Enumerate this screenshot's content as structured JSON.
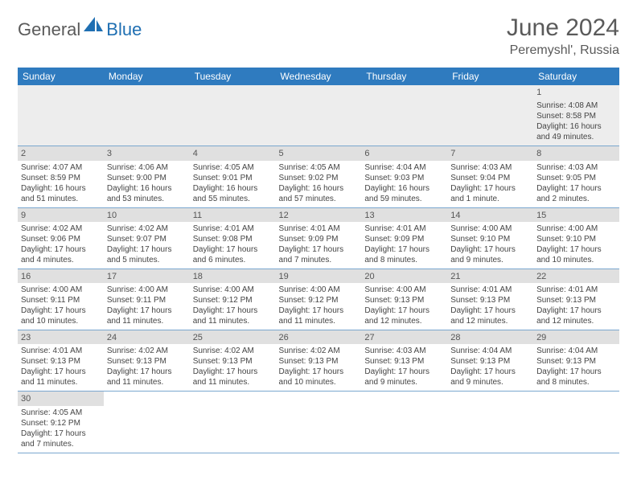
{
  "brand": {
    "part1": "General",
    "part2": "Blue",
    "color1": "#5a5a5a",
    "color2": "#1f6fb2"
  },
  "title": "June 2024",
  "location": "Peremyshl', Russia",
  "header_bg": "#2f7bbf",
  "header_fg": "#ffffff",
  "daynum_bg": "#e0e0e0",
  "border_color": "#7aa7cf",
  "weekdays": [
    "Sunday",
    "Monday",
    "Tuesday",
    "Wednesday",
    "Thursday",
    "Friday",
    "Saturday"
  ],
  "weeks": [
    [
      null,
      null,
      null,
      null,
      null,
      null,
      {
        "n": "1",
        "sr": "Sunrise: 4:08 AM",
        "ss": "Sunset: 8:58 PM",
        "dl1": "Daylight: 16 hours",
        "dl2": "and 49 minutes."
      }
    ],
    [
      {
        "n": "2",
        "sr": "Sunrise: 4:07 AM",
        "ss": "Sunset: 8:59 PM",
        "dl1": "Daylight: 16 hours",
        "dl2": "and 51 minutes."
      },
      {
        "n": "3",
        "sr": "Sunrise: 4:06 AM",
        "ss": "Sunset: 9:00 PM",
        "dl1": "Daylight: 16 hours",
        "dl2": "and 53 minutes."
      },
      {
        "n": "4",
        "sr": "Sunrise: 4:05 AM",
        "ss": "Sunset: 9:01 PM",
        "dl1": "Daylight: 16 hours",
        "dl2": "and 55 minutes."
      },
      {
        "n": "5",
        "sr": "Sunrise: 4:05 AM",
        "ss": "Sunset: 9:02 PM",
        "dl1": "Daylight: 16 hours",
        "dl2": "and 57 minutes."
      },
      {
        "n": "6",
        "sr": "Sunrise: 4:04 AM",
        "ss": "Sunset: 9:03 PM",
        "dl1": "Daylight: 16 hours",
        "dl2": "and 59 minutes."
      },
      {
        "n": "7",
        "sr": "Sunrise: 4:03 AM",
        "ss": "Sunset: 9:04 PM",
        "dl1": "Daylight: 17 hours",
        "dl2": "and 1 minute."
      },
      {
        "n": "8",
        "sr": "Sunrise: 4:03 AM",
        "ss": "Sunset: 9:05 PM",
        "dl1": "Daylight: 17 hours",
        "dl2": "and 2 minutes."
      }
    ],
    [
      {
        "n": "9",
        "sr": "Sunrise: 4:02 AM",
        "ss": "Sunset: 9:06 PM",
        "dl1": "Daylight: 17 hours",
        "dl2": "and 4 minutes."
      },
      {
        "n": "10",
        "sr": "Sunrise: 4:02 AM",
        "ss": "Sunset: 9:07 PM",
        "dl1": "Daylight: 17 hours",
        "dl2": "and 5 minutes."
      },
      {
        "n": "11",
        "sr": "Sunrise: 4:01 AM",
        "ss": "Sunset: 9:08 PM",
        "dl1": "Daylight: 17 hours",
        "dl2": "and 6 minutes."
      },
      {
        "n": "12",
        "sr": "Sunrise: 4:01 AM",
        "ss": "Sunset: 9:09 PM",
        "dl1": "Daylight: 17 hours",
        "dl2": "and 7 minutes."
      },
      {
        "n": "13",
        "sr": "Sunrise: 4:01 AM",
        "ss": "Sunset: 9:09 PM",
        "dl1": "Daylight: 17 hours",
        "dl2": "and 8 minutes."
      },
      {
        "n": "14",
        "sr": "Sunrise: 4:00 AM",
        "ss": "Sunset: 9:10 PM",
        "dl1": "Daylight: 17 hours",
        "dl2": "and 9 minutes."
      },
      {
        "n": "15",
        "sr": "Sunrise: 4:00 AM",
        "ss": "Sunset: 9:10 PM",
        "dl1": "Daylight: 17 hours",
        "dl2": "and 10 minutes."
      }
    ],
    [
      {
        "n": "16",
        "sr": "Sunrise: 4:00 AM",
        "ss": "Sunset: 9:11 PM",
        "dl1": "Daylight: 17 hours",
        "dl2": "and 10 minutes."
      },
      {
        "n": "17",
        "sr": "Sunrise: 4:00 AM",
        "ss": "Sunset: 9:11 PM",
        "dl1": "Daylight: 17 hours",
        "dl2": "and 11 minutes."
      },
      {
        "n": "18",
        "sr": "Sunrise: 4:00 AM",
        "ss": "Sunset: 9:12 PM",
        "dl1": "Daylight: 17 hours",
        "dl2": "and 11 minutes."
      },
      {
        "n": "19",
        "sr": "Sunrise: 4:00 AM",
        "ss": "Sunset: 9:12 PM",
        "dl1": "Daylight: 17 hours",
        "dl2": "and 11 minutes."
      },
      {
        "n": "20",
        "sr": "Sunrise: 4:00 AM",
        "ss": "Sunset: 9:13 PM",
        "dl1": "Daylight: 17 hours",
        "dl2": "and 12 minutes."
      },
      {
        "n": "21",
        "sr": "Sunrise: 4:01 AM",
        "ss": "Sunset: 9:13 PM",
        "dl1": "Daylight: 17 hours",
        "dl2": "and 12 minutes."
      },
      {
        "n": "22",
        "sr": "Sunrise: 4:01 AM",
        "ss": "Sunset: 9:13 PM",
        "dl1": "Daylight: 17 hours",
        "dl2": "and 12 minutes."
      }
    ],
    [
      {
        "n": "23",
        "sr": "Sunrise: 4:01 AM",
        "ss": "Sunset: 9:13 PM",
        "dl1": "Daylight: 17 hours",
        "dl2": "and 11 minutes."
      },
      {
        "n": "24",
        "sr": "Sunrise: 4:02 AM",
        "ss": "Sunset: 9:13 PM",
        "dl1": "Daylight: 17 hours",
        "dl2": "and 11 minutes."
      },
      {
        "n": "25",
        "sr": "Sunrise: 4:02 AM",
        "ss": "Sunset: 9:13 PM",
        "dl1": "Daylight: 17 hours",
        "dl2": "and 11 minutes."
      },
      {
        "n": "26",
        "sr": "Sunrise: 4:02 AM",
        "ss": "Sunset: 9:13 PM",
        "dl1": "Daylight: 17 hours",
        "dl2": "and 10 minutes."
      },
      {
        "n": "27",
        "sr": "Sunrise: 4:03 AM",
        "ss": "Sunset: 9:13 PM",
        "dl1": "Daylight: 17 hours",
        "dl2": "and 9 minutes."
      },
      {
        "n": "28",
        "sr": "Sunrise: 4:04 AM",
        "ss": "Sunset: 9:13 PM",
        "dl1": "Daylight: 17 hours",
        "dl2": "and 9 minutes."
      },
      {
        "n": "29",
        "sr": "Sunrise: 4:04 AM",
        "ss": "Sunset: 9:13 PM",
        "dl1": "Daylight: 17 hours",
        "dl2": "and 8 minutes."
      }
    ],
    [
      {
        "n": "30",
        "sr": "Sunrise: 4:05 AM",
        "ss": "Sunset: 9:12 PM",
        "dl1": "Daylight: 17 hours",
        "dl2": "and 7 minutes."
      },
      null,
      null,
      null,
      null,
      null,
      null
    ]
  ]
}
